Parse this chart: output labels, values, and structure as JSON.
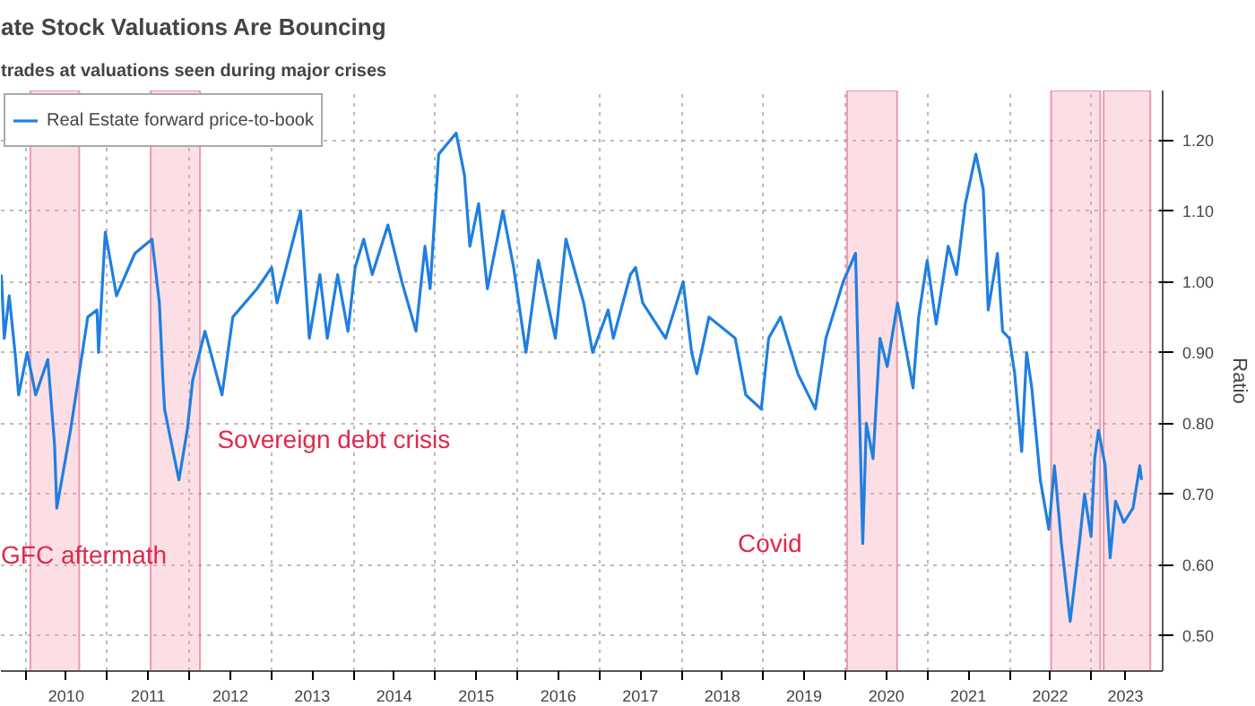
{
  "chart_data": {
    "type": "line",
    "title": "ate Stock Valuations Are Bouncing",
    "subtitle": "trades at valuations seen during major crises",
    "ylabel": "Ratio",
    "xlim": [
      "2009-09-13",
      "2023-11-14"
    ],
    "ylim": [
      0.45,
      1.27
    ],
    "yticks": [
      {
        "value": 0.5,
        "label": "0.50"
      },
      {
        "value": 0.6,
        "label": "0.60"
      },
      {
        "value": 0.7,
        "label": "0.70"
      },
      {
        "value": 0.8,
        "label": "0.80"
      },
      {
        "value": 0.9,
        "label": "0.90"
      },
      {
        "value": 1.0,
        "label": "1.00"
      },
      {
        "value": 1.1,
        "label": "1.10"
      },
      {
        "value": 1.2,
        "label": "1.20"
      }
    ],
    "xticks": [
      {
        "value": "2010-01-01",
        "label": null
      },
      {
        "value": "2011-01-01",
        "label": null
      },
      {
        "value": "2012-01-01",
        "label": null
      },
      {
        "value": "2013-01-01",
        "label": null
      },
      {
        "value": "2014-01-01",
        "label": null
      },
      {
        "value": "2015-01-01",
        "label": null
      },
      {
        "value": "2016-01-01",
        "label": null
      },
      {
        "value": "2017-01-01",
        "label": null
      },
      {
        "value": "2018-01-01",
        "label": null
      },
      {
        "value": "2019-01-01",
        "label": null
      },
      {
        "value": "2020-01-01",
        "label": null
      },
      {
        "value": "2021-01-01",
        "label": null
      },
      {
        "value": "2022-01-01",
        "label": null
      },
      {
        "value": "2023-01-01",
        "label": null
      },
      {
        "value": "2010-07-01",
        "label": "2010"
      },
      {
        "value": "2011-07-01",
        "label": "2011"
      },
      {
        "value": "2012-07-01",
        "label": "2012"
      },
      {
        "value": "2013-07-01",
        "label": "2013"
      },
      {
        "value": "2014-07-01",
        "label": "2014"
      },
      {
        "value": "2015-07-01",
        "label": "2015"
      },
      {
        "value": "2016-07-01",
        "label": "2016"
      },
      {
        "value": "2017-07-01",
        "label": "2017"
      },
      {
        "value": "2018-07-01",
        "label": "2018"
      },
      {
        "value": "2019-07-01",
        "label": "2019"
      },
      {
        "value": "2020-07-01",
        "label": "2020"
      },
      {
        "value": "2021-07-01",
        "label": "2021"
      },
      {
        "value": "2022-07-01",
        "label": "2022"
      },
      {
        "value": "2023-06-01",
        "label": "2023"
      }
    ],
    "grid": true,
    "legend": "top left",
    "series": [
      {
        "name": "Real Estate forward price-to-book",
        "color": "#1f7fe0",
        "x": [
          "2009-09-15",
          "2009-09-28",
          "2009-10-20",
          "2009-11-15",
          "2009-12-01",
          "2010-01-08",
          "2010-02-15",
          "2010-04-10",
          "2010-05-10",
          "2010-05-20",
          "2010-07-20",
          "2010-10-05",
          "2010-11-15",
          "2010-11-22",
          "2010-12-22",
          "2011-02-10",
          "2011-05-03",
          "2011-07-18",
          "2011-08-20",
          "2011-09-05",
          "2011-09-12",
          "2011-10-20",
          "2011-11-15",
          "2011-12-22",
          "2012-01-15",
          "2012-03-10",
          "2012-05-25",
          "2012-07-12",
          "2012-10-28",
          "2013-01-01",
          "2013-01-25",
          "2013-05-10",
          "2013-06-18",
          "2013-08-04",
          "2013-09-06",
          "2013-10-22",
          "2013-12-07",
          "2014-01-08",
          "2014-02-15",
          "2014-03-25",
          "2014-06-03",
          "2014-08-04",
          "2014-10-06",
          "2014-11-15",
          "2014-12-08",
          "2015-01-15",
          "2015-04-03",
          "2015-05-10",
          "2015-06-03",
          "2015-07-12",
          "2015-08-20",
          "2015-10-28",
          "2015-12-15",
          "2016-02-08",
          "2016-04-03",
          "2016-06-18",
          "2016-08-04",
          "2016-10-22",
          "2016-12-01",
          "2017-02-08",
          "2017-03-03",
          "2017-05-18",
          "2017-06-10",
          "2017-07-12",
          "2017-10-22",
          "2018-01-08",
          "2018-02-15",
          "2018-03-10",
          "2018-05-03",
          "2018-08-28",
          "2018-10-14",
          "2018-12-22",
          "2019-01-24",
          "2019-03-18",
          "2019-06-03",
          "2019-08-20",
          "2019-10-06",
          "2019-12-22",
          "2020-02-15",
          "2020-03-18",
          "2020-04-03",
          "2020-05-03",
          "2020-06-03",
          "2020-07-05",
          "2020-08-20",
          "2020-10-28",
          "2020-11-22",
          "2020-12-30",
          "2021-02-08",
          "2021-04-03",
          "2021-05-10",
          "2021-06-18",
          "2021-08-04",
          "2021-09-06",
          "2021-09-28",
          "2021-11-08",
          "2021-12-01",
          "2021-12-31",
          "2022-01-24",
          "2022-02-24",
          "2022-03-18",
          "2022-04-10",
          "2022-05-18",
          "2022-06-25",
          "2022-07-20",
          "2022-08-20",
          "2022-09-28",
          "2022-11-08",
          "2022-12-01",
          "2022-12-30",
          "2023-01-15",
          "2023-02-01",
          "2023-03-03",
          "2023-03-25",
          "2023-04-18",
          "2023-05-25",
          "2023-07-05",
          "2023-08-04",
          "2023-08-12"
        ],
        "values": [
          1.01,
          0.92,
          0.98,
          0.9,
          0.84,
          0.9,
          0.84,
          0.89,
          0.77,
          0.68,
          0.79,
          0.95,
          0.96,
          0.9,
          1.07,
          0.98,
          1.04,
          1.06,
          0.97,
          0.86,
          0.82,
          0.76,
          0.72,
          0.79,
          0.86,
          0.93,
          0.84,
          0.95,
          0.99,
          1.02,
          0.97,
          1.1,
          0.92,
          1.01,
          0.92,
          1.01,
          0.93,
          1.02,
          1.06,
          1.01,
          1.08,
          1.0,
          0.93,
          1.05,
          0.99,
          1.18,
          1.21,
          1.15,
          1.05,
          1.11,
          0.99,
          1.1,
          1.02,
          0.9,
          1.03,
          0.92,
          1.06,
          0.97,
          0.9,
          0.96,
          0.92,
          1.01,
          1.02,
          0.97,
          0.92,
          1.0,
          0.9,
          0.87,
          0.95,
          0.92,
          0.84,
          0.82,
          0.92,
          0.95,
          0.87,
          0.82,
          0.92,
          1.0,
          1.04,
          0.63,
          0.8,
          0.75,
          0.92,
          0.88,
          0.97,
          0.85,
          0.95,
          1.03,
          0.94,
          1.05,
          1.01,
          1.11,
          1.18,
          1.13,
          0.96,
          1.04,
          0.93,
          0.92,
          0.87,
          0.76,
          0.9,
          0.85,
          0.72,
          0.65,
          0.74,
          0.63,
          0.52,
          0.63,
          0.7,
          0.64,
          0.75,
          0.79,
          0.74,
          0.61,
          0.69,
          0.66,
          0.68,
          0.74,
          0.72
        ]
      }
    ],
    "bands": [
      {
        "axis": "x",
        "from": "2010-01-22",
        "to": "2010-08-28",
        "color": "#f7a3b4"
      },
      {
        "axis": "x",
        "from": "2011-07-12",
        "to": "2012-02-17",
        "color": "#f7a3b4"
      },
      {
        "axis": "x",
        "from": "2020-01-08",
        "to": "2020-08-18",
        "color": "#f7a3b4"
      },
      {
        "axis": "x",
        "from": "2022-07-05",
        "to": "2023-02-09",
        "color": "#f7a3b4"
      },
      {
        "axis": "x",
        "from": "2023-02-24",
        "to": "2023-09-20",
        "color": "#f7a3b4"
      }
    ],
    "annotations": [
      "GFC aftermath",
      "Sovereign debt crisis",
      "Covid"
    ]
  }
}
